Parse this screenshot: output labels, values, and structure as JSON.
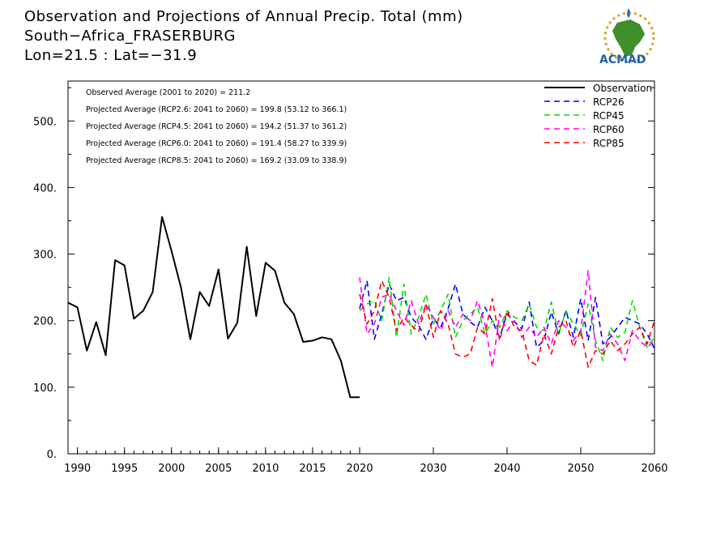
{
  "header": {
    "title_line1": "Observation and Projections of Annual Precip. Total (mm)",
    "title_line2": "South−Africa_FRASERBURG",
    "title_line3": "Lon=21.5 : Lat=−31.9"
  },
  "logo": {
    "text": "ACMAD",
    "colors": {
      "africa": "#3f8f2a",
      "ring": "#e0a020",
      "drop": "#2a6cc8",
      "text": "#1d5fb0"
    }
  },
  "stats": [
    "Observed Average (2001 to 2020) = 211.2",
    "Projected Average (RCP2.6: 2041 to 2060) =  199.8 (53.12 to 366.1)",
    "Projected Average (RCP4.5: 2041 to 2060) =  194.2 (51.37 to 361.2)",
    "Projected Average (RCP6.0: 2041 to 2060) =  191.4 (58.27 to 339.9)",
    "Projected Average (RCP8.5: 2041 to 2060) =  169.2 (33.09 to 338.9)"
  ],
  "chart_data": {
    "type": "line",
    "xlim": [
      1989,
      2060
    ],
    "ylim": [
      0,
      560
    ],
    "x_ticks_major": [
      1990,
      1995,
      2000,
      2005,
      2010,
      2015,
      2020
    ],
    "x_ticks_minor": [
      2030,
      2040,
      2050,
      2060
    ],
    "x_tick_labels": [
      "1990",
      "1995",
      "2000",
      "2005",
      "2010",
      "2015",
      "2020",
      "2030",
      "2040",
      "2050",
      "2060"
    ],
    "y_ticks": [
      0,
      100,
      200,
      300,
      400,
      500
    ],
    "y_tick_labels": [
      "0.",
      "100.",
      "200.",
      "300.",
      "400.",
      "500."
    ],
    "legend_position": "top-right",
    "series": [
      {
        "name": "Observation",
        "color": "#000000",
        "dash": "solid",
        "x": [
          1989,
          1990,
          1991,
          1992,
          1993,
          1994,
          1995,
          1996,
          1997,
          1998,
          1999,
          2000,
          2001,
          2002,
          2003,
          2004,
          2005,
          2006,
          2007,
          2008,
          2009,
          2010,
          2011,
          2012,
          2013,
          2014,
          2015,
          2016,
          2017,
          2018,
          2019,
          2020
        ],
        "values": [
          227,
          220,
          155,
          198,
          148,
          291,
          283,
          203,
          215,
          243,
          356,
          305,
          250,
          172,
          243,
          222,
          277,
          173,
          197,
          311,
          207,
          287,
          275,
          227,
          210,
          168,
          170,
          175,
          172,
          140,
          85,
          85
        ]
      },
      {
        "name": "RCP26",
        "color": "#0000ff",
        "dash": "dashed",
        "x": [
          2020,
          2021,
          2022,
          2023,
          2024,
          2025,
          2026,
          2027,
          2028,
          2029,
          2030,
          2031,
          2032,
          2033,
          2034,
          2035,
          2036,
          2037,
          2038,
          2039,
          2040,
          2041,
          2042,
          2043,
          2044,
          2045,
          2046,
          2047,
          2048,
          2049,
          2050,
          2051,
          2052,
          2053,
          2054,
          2055,
          2056,
          2057,
          2058,
          2059,
          2060
        ],
        "values": [
          218,
          260,
          172,
          210,
          255,
          230,
          235,
          205,
          193,
          172,
          203,
          190,
          218,
          255,
          210,
          198,
          190,
          220,
          200,
          175,
          210,
          198,
          188,
          228,
          160,
          170,
          213,
          180,
          215,
          175,
          233,
          170,
          235,
          165,
          175,
          190,
          205,
          200,
          195,
          180,
          158
        ]
      },
      {
        "name": "RCP45",
        "color": "#00dd00",
        "dash": "dashed",
        "x": [
          2020,
          2021,
          2022,
          2023,
          2024,
          2025,
          2026,
          2027,
          2028,
          2029,
          2030,
          2031,
          2032,
          2033,
          2034,
          2035,
          2036,
          2037,
          2038,
          2039,
          2040,
          2041,
          2042,
          2043,
          2044,
          2045,
          2046,
          2047,
          2048,
          2049,
          2050,
          2051,
          2052,
          2053,
          2054,
          2055,
          2056,
          2057,
          2058,
          2059,
          2060
        ],
        "values": [
          215,
          225,
          230,
          200,
          265,
          175,
          255,
          180,
          205,
          240,
          195,
          215,
          240,
          175,
          200,
          210,
          220,
          180,
          200,
          190,
          215,
          205,
          200,
          225,
          190,
          185,
          228,
          180,
          215,
          195,
          178,
          225,
          170,
          140,
          190,
          175,
          183,
          230,
          190,
          160,
          175
        ]
      },
      {
        "name": "RCP60",
        "color": "#ff00ff",
        "dash": "dashed",
        "x": [
          2020,
          2021,
          2022,
          2023,
          2024,
          2025,
          2026,
          2027,
          2028,
          2029,
          2030,
          2031,
          2032,
          2033,
          2034,
          2035,
          2036,
          2037,
          2038,
          2039,
          2040,
          2041,
          2042,
          2043,
          2044,
          2045,
          2046,
          2047,
          2048,
          2049,
          2050,
          2051,
          2052,
          2053,
          2054,
          2055,
          2056,
          2057,
          2058,
          2059,
          2060
        ],
        "values": [
          265,
          180,
          195,
          235,
          240,
          215,
          193,
          230,
          195,
          225,
          205,
          185,
          215,
          190,
          210,
          200,
          230,
          195,
          130,
          210,
          185,
          200,
          175,
          190,
          175,
          190,
          165,
          200,
          190,
          170,
          185,
          275,
          160,
          155,
          180,
          165,
          140,
          185,
          170,
          160,
          170
        ]
      },
      {
        "name": "RCP85",
        "color": "#ff0000",
        "dash": "dashed",
        "x": [
          2020,
          2021,
          2022,
          2023,
          2024,
          2025,
          2026,
          2027,
          2028,
          2029,
          2030,
          2031,
          2032,
          2033,
          2034,
          2035,
          2036,
          2037,
          2038,
          2039,
          2040,
          2041,
          2042,
          2043,
          2044,
          2045,
          2046,
          2047,
          2048,
          2049,
          2050,
          2051,
          2052,
          2053,
          2054,
          2055,
          2056,
          2057,
          2058,
          2059,
          2060
        ],
        "values": [
          240,
          195,
          215,
          260,
          235,
          185,
          205,
          193,
          183,
          225,
          175,
          215,
          195,
          150,
          145,
          150,
          190,
          180,
          233,
          170,
          215,
          190,
          185,
          140,
          133,
          180,
          150,
          190,
          200,
          160,
          185,
          130,
          155,
          150,
          170,
          155,
          165,
          180,
          190,
          165,
          200
        ]
      }
    ]
  }
}
